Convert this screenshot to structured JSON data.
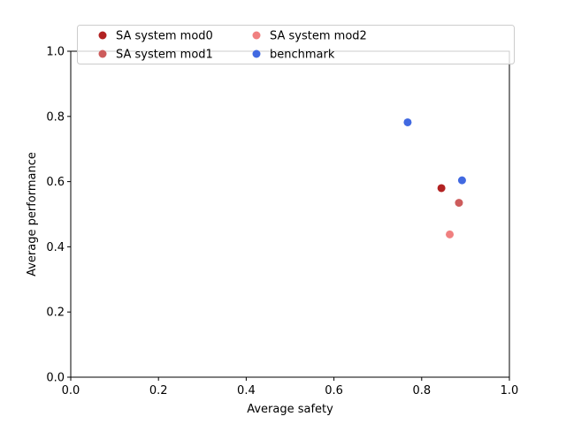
{
  "chart_data": {
    "type": "scatter",
    "title": "",
    "xlabel": "Average safety",
    "ylabel": "Average performance",
    "xlim": [
      0,
      1
    ],
    "ylim": [
      0,
      1
    ],
    "xticks": [
      "0.0",
      "0.2",
      "0.4",
      "0.6",
      "0.8",
      "1.0"
    ],
    "yticks": [
      "0.0",
      "0.2",
      "0.4",
      "0.6",
      "0.8",
      "1.0"
    ],
    "grid": false,
    "legend_position": "top",
    "series": [
      {
        "name": "SA system mod0",
        "color": "#b22222",
        "points": [
          {
            "x": 0.845,
            "y": 0.58
          }
        ]
      },
      {
        "name": "SA system mod1",
        "color": "#cd5c5c",
        "points": [
          {
            "x": 0.885,
            "y": 0.535
          }
        ]
      },
      {
        "name": "SA system mod2",
        "color": "#f08080",
        "points": [
          {
            "x": 0.864,
            "y": 0.438
          }
        ]
      },
      {
        "name": "benchmark",
        "color": "#4169e1",
        "points": [
          {
            "x": 0.768,
            "y": 0.782
          },
          {
            "x": 0.892,
            "y": 0.604
          }
        ]
      }
    ]
  }
}
